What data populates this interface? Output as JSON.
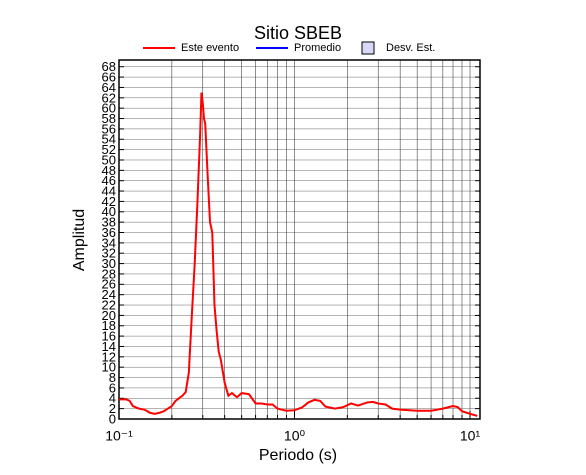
{
  "chart_data": {
    "type": "line",
    "title": "Sitio SBEB",
    "xlabel": "Periodo (s)",
    "ylabel": "Amplitud",
    "xscale": "log",
    "xlim": [
      0.1,
      11.4
    ],
    "ylim": [
      0,
      69.3
    ],
    "xticks": [
      {
        "value": 0.1,
        "label": "10⁻¹"
      },
      {
        "value": 1,
        "label": "10⁰"
      },
      {
        "value": 10,
        "label": "10¹"
      }
    ],
    "xminorticks": [
      0.2,
      0.3,
      0.4,
      0.5,
      0.6,
      0.7,
      0.8,
      0.9,
      2,
      3,
      4,
      5,
      6,
      7,
      8,
      9
    ],
    "yticks": [
      0,
      2,
      4,
      6,
      8,
      10,
      12,
      14,
      16,
      18,
      20,
      22,
      24,
      26,
      28,
      30,
      32,
      34,
      36,
      38,
      40,
      42,
      44,
      46,
      48,
      50,
      52,
      54,
      56,
      58,
      60,
      62,
      64,
      66,
      68
    ],
    "grid": true,
    "series": [
      {
        "name": "Este evento",
        "color": "#ff0000",
        "x": [
          0.1,
          0.11,
          0.115,
          0.12,
          0.13,
          0.14,
          0.15,
          0.16,
          0.17,
          0.18,
          0.2,
          0.21,
          0.23,
          0.24,
          0.25,
          0.26,
          0.27,
          0.28,
          0.29,
          0.295,
          0.3,
          0.305,
          0.31,
          0.32,
          0.33,
          0.34,
          0.35,
          0.36,
          0.37,
          0.38,
          0.4,
          0.42,
          0.44,
          0.47,
          0.5,
          0.55,
          0.6,
          0.65,
          0.7,
          0.75,
          0.8,
          0.9,
          1.0,
          1.1,
          1.2,
          1.3,
          1.4,
          1.5,
          1.7,
          1.9,
          2.1,
          2.3,
          2.6,
          2.8,
          3,
          3.3,
          3.6,
          4,
          5,
          6,
          7,
          8,
          8.5,
          9,
          10,
          11
        ],
        "values": [
          3.8,
          3.8,
          3.5,
          2.5,
          2,
          1.8,
          1.2,
          1,
          1.2,
          1.5,
          2.5,
          3.5,
          4.5,
          5.2,
          9,
          20,
          30,
          42,
          55,
          63,
          61,
          58,
          57,
          47,
          38,
          36,
          22,
          17,
          13,
          11.5,
          7,
          4.5,
          5,
          4.2,
          5,
          4.8,
          3,
          3,
          2.8,
          2.8,
          2,
          1.6,
          1.7,
          2.2,
          3.2,
          3.7,
          3.5,
          2.4,
          2,
          2.3,
          3,
          2.6,
          3.2,
          3.3,
          3,
          2.8,
          2,
          1.8,
          1.6,
          1.6,
          2,
          2.5,
          2.3,
          1.5,
          1,
          0.6
        ]
      },
      {
        "name": "Promedio",
        "color": "#0000ff"
      },
      {
        "name": "Desv. Est.",
        "color": "#d8d8f8",
        "kind": "band"
      }
    ]
  }
}
